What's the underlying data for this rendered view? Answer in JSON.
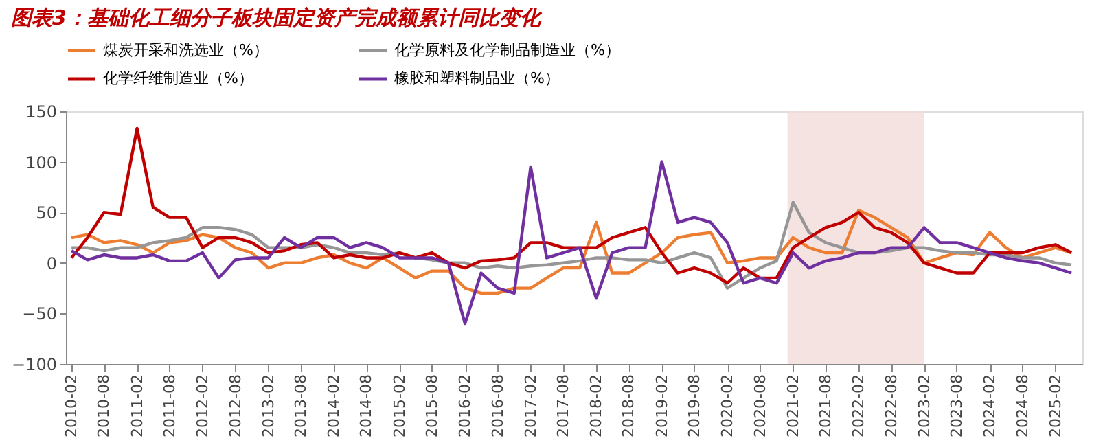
{
  "chart_data": {
    "type": "line",
    "title": "图表3：基础化工细分子板块固定资产完成额累计同比变化",
    "x": [
      "2010-02",
      "2010-05",
      "2010-08",
      "2010-11",
      "2011-02",
      "2011-05",
      "2011-08",
      "2011-11",
      "2012-02",
      "2012-05",
      "2012-08",
      "2012-11",
      "2013-02",
      "2013-05",
      "2013-08",
      "2013-11",
      "2014-02",
      "2014-05",
      "2014-08",
      "2014-11",
      "2015-02",
      "2015-05",
      "2015-08",
      "2015-11",
      "2016-02",
      "2016-05",
      "2016-08",
      "2016-11",
      "2017-02",
      "2017-05",
      "2017-08",
      "2017-11",
      "2018-02",
      "2018-05",
      "2018-08",
      "2018-11",
      "2019-02",
      "2019-05",
      "2019-08",
      "2019-11",
      "2020-02",
      "2020-05",
      "2020-08",
      "2020-11",
      "2021-02",
      "2021-05",
      "2021-08",
      "2021-11",
      "2022-02",
      "2022-05",
      "2022-08",
      "2022-11",
      "2023-02",
      "2023-05",
      "2023-08",
      "2023-11",
      "2024-02",
      "2024-05",
      "2024-08",
      "2024-11",
      "2025-02",
      "2025-05"
    ],
    "series": [
      {
        "name": "煤炭开采和洗选业（%）",
        "color": "#ed7d31",
        "values": [
          25,
          28,
          20,
          22,
          18,
          10,
          20,
          22,
          28,
          25,
          15,
          10,
          -5,
          0,
          0,
          5,
          8,
          0,
          -5,
          5,
          -5,
          -15,
          -8,
          -8,
          -25,
          -30,
          -30,
          -25,
          -25,
          -15,
          -5,
          -5,
          40,
          -10,
          -10,
          0,
          10,
          25,
          28,
          30,
          0,
          2,
          5,
          5,
          25,
          15,
          10,
          10,
          52,
          45,
          35,
          25,
          0,
          5,
          10,
          8,
          30,
          15,
          5,
          10,
          15,
          10
        ]
      },
      {
        "name": "化学原料及化学制品制造业（%）",
        "color": "#969696",
        "values": [
          15,
          15,
          12,
          15,
          15,
          20,
          22,
          25,
          35,
          35,
          33,
          28,
          15,
          15,
          15,
          18,
          15,
          10,
          10,
          8,
          10,
          5,
          3,
          0,
          0,
          -5,
          -3,
          -5,
          -3,
          -2,
          0,
          2,
          5,
          5,
          3,
          3,
          0,
          5,
          10,
          5,
          -25,
          -15,
          -5,
          2,
          60,
          30,
          20,
          15,
          10,
          10,
          12,
          15,
          15,
          12,
          10,
          10,
          8,
          8,
          5,
          5,
          0,
          -2
        ]
      },
      {
        "name": "化学纤维制造业（%）",
        "color": "#c00000",
        "values": [
          5,
          25,
          50,
          48,
          133,
          55,
          45,
          45,
          15,
          25,
          25,
          20,
          10,
          12,
          18,
          20,
          5,
          8,
          5,
          5,
          10,
          5,
          10,
          0,
          -5,
          2,
          3,
          5,
          20,
          20,
          15,
          15,
          15,
          25,
          30,
          35,
          10,
          -10,
          -5,
          -10,
          -20,
          -5,
          -15,
          -15,
          15,
          25,
          35,
          40,
          50,
          35,
          30,
          20,
          0,
          -5,
          -10,
          -10,
          10,
          10,
          10,
          15,
          18,
          10
        ]
      },
      {
        "name": "橡胶和塑料制品业（%）",
        "color": "#7030a0",
        "values": [
          12,
          3,
          8,
          5,
          5,
          8,
          2,
          2,
          10,
          -15,
          3,
          5,
          5,
          25,
          15,
          25,
          25,
          15,
          20,
          15,
          5,
          5,
          5,
          0,
          -60,
          -10,
          -25,
          -30,
          95,
          5,
          10,
          15,
          -35,
          10,
          15,
          15,
          100,
          40,
          45,
          40,
          20,
          -20,
          -15,
          -20,
          10,
          -5,
          2,
          5,
          10,
          10,
          15,
          15,
          35,
          20,
          20,
          15,
          10,
          5,
          2,
          0,
          -5,
          -10
        ]
      }
    ],
    "ylim": [
      -100,
      150
    ],
    "yticks": [
      -100,
      -50,
      0,
      50,
      100,
      150
    ],
    "xlim": [
      "2010-01",
      "2025-07"
    ],
    "xticks": [
      "2010-02",
      "2010-08",
      "2011-02",
      "2011-08",
      "2012-02",
      "2012-08",
      "2013-02",
      "2013-08",
      "2014-02",
      "2014-08",
      "2015-02",
      "2015-08",
      "2016-02",
      "2016-08",
      "2017-02",
      "2017-08",
      "2018-02",
      "2018-08",
      "2019-02",
      "2019-08",
      "2020-02",
      "2020-08",
      "2021-02",
      "2021-08",
      "2022-02",
      "2022-08",
      "2023-02",
      "2023-08",
      "2024-02",
      "2024-08",
      "2025-02"
    ],
    "bands": [
      {
        "axis": "x",
        "from": "2021-01",
        "to": "2023-02",
        "color": "#f2dcdb"
      }
    ],
    "grid": false,
    "legend": "top",
    "marker": "none",
    "line_style": "solid"
  }
}
